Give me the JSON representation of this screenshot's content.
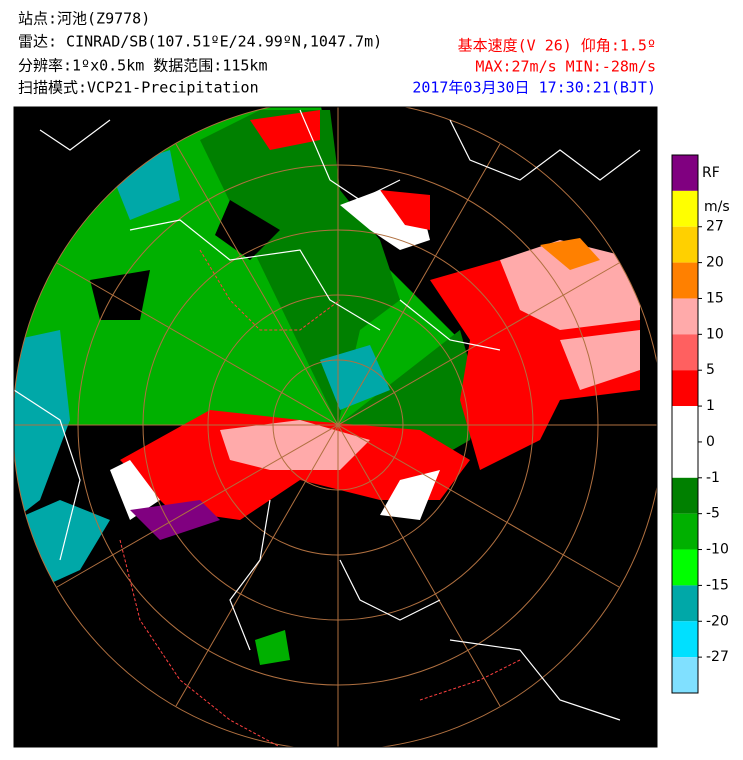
{
  "header": {
    "station": "站点:河池(Z9778)",
    "radar": "雷达: CINRAD/SB(107.51ºE/24.99ºN,1047.7m)",
    "resolution": "分辨率:1ºx0.5km 数据范围:115km",
    "scan_mode": "扫描模式:VCP21-Precipitation",
    "product": "基本速度(V 26) 仰角:1.5º",
    "max_min": "MAX:27m/s MIN:-28m/s",
    "time": "2017年03月30日 17:30:21(BJT)"
  },
  "legend": {
    "rf_label": "RF",
    "unit": "m/s",
    "colors": [
      "#800080",
      "#ffff00",
      "#ffd000",
      "#ff8000",
      "#ffaaaa",
      "#ff6060",
      "#ff0000",
      "#ffffff",
      "#ffffff",
      "#008000",
      "#00b000",
      "#00ff00",
      "#00a8a8",
      "#00e0ff",
      "#80e0ff"
    ],
    "labels": [
      "27",
      "20",
      "15",
      "10",
      "5",
      "1",
      "0",
      "-1",
      "-5",
      "-10",
      "-15",
      "-20",
      "-27"
    ]
  }
}
